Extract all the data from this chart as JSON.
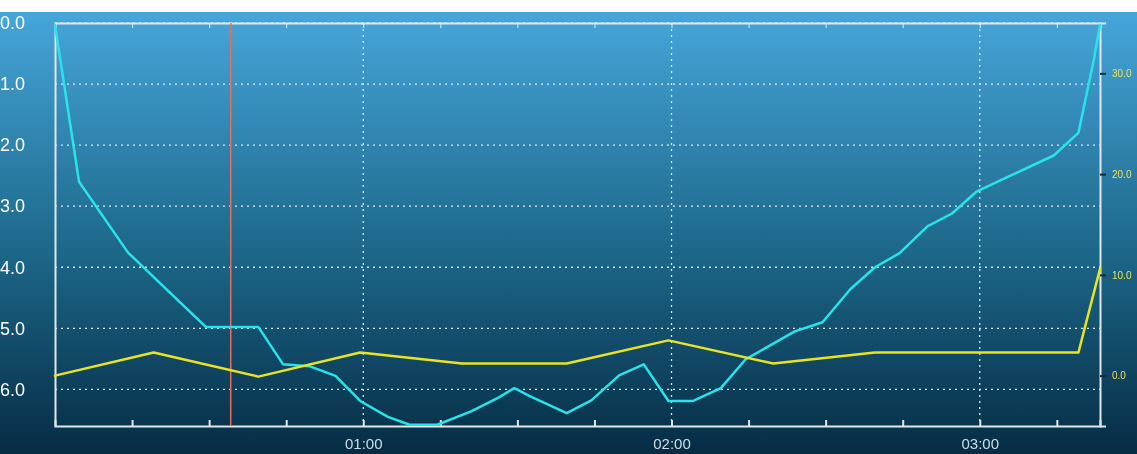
{
  "chart_data": {
    "type": "line",
    "xlim": [
      0,
      3.39
    ],
    "ylim": [
      6.6,
      0
    ],
    "y2lim": [
      -5,
      35
    ],
    "xticks": [
      {
        "value": 0.25,
        "label": null
      },
      {
        "value": 0.5,
        "label": null
      },
      {
        "value": 0.75,
        "label": null
      },
      {
        "value": 1,
        "label": "01:00"
      },
      {
        "value": 1.25,
        "label": null
      },
      {
        "value": 1.5,
        "label": null
      },
      {
        "value": 1.75,
        "label": null
      },
      {
        "value": 2,
        "label": "02:00"
      },
      {
        "value": 2.25,
        "label": null
      },
      {
        "value": 2.5,
        "label": null
      },
      {
        "value": 2.75,
        "label": null
      },
      {
        "value": 3,
        "label": "03:00"
      },
      {
        "value": 3.25,
        "label": null
      }
    ],
    "yticks": [
      {
        "value": 0,
        "label": "0.0"
      },
      {
        "value": 1,
        "label": "1.0"
      },
      {
        "value": 2,
        "label": "2.0"
      },
      {
        "value": 3,
        "label": "3.0"
      },
      {
        "value": 4,
        "label": "4.0"
      },
      {
        "value": 5,
        "label": "5.0"
      },
      {
        "value": 6,
        "label": "6.0"
      }
    ],
    "y2ticks": [
      {
        "value": 0,
        "label": "0.0"
      },
      {
        "value": 10,
        "label": "10.0"
      },
      {
        "value": 20,
        "label": "20.0"
      },
      {
        "value": 30,
        "label": "30.0"
      }
    ],
    "grid": true,
    "line_style": "solid",
    "ref_lines": [
      {
        "axis": "x",
        "value": 0.57,
        "label": null,
        "color": "#e07060"
      }
    ],
    "series": [
      {
        "color": "#28e4ea",
        "x": [
          0,
          0.078,
          0.237,
          0.49,
          0.66,
          0.74,
          0.825,
          0.91,
          0.99,
          1.08,
          1.15,
          1.24,
          1.35,
          1.44,
          1.49,
          1.54,
          1.66,
          1.74,
          1.83,
          1.91,
          1.99,
          2.07,
          2.16,
          2.24,
          2.32,
          2.4,
          2.49,
          2.58,
          2.66,
          2.74,
          2.83,
          2.91,
          2.99,
          3.07,
          3.24,
          3.32,
          3.37,
          3.39
        ],
        "values": [
          0.03,
          2.6,
          3.76,
          4.98,
          4.98,
          5.59,
          5.62,
          5.78,
          6.19,
          6.45,
          6.58,
          6.58,
          6.36,
          6.13,
          5.98,
          6.11,
          6.39,
          6.18,
          5.77,
          5.59,
          6.19,
          6.19,
          5.98,
          5.51,
          5.28,
          5.05,
          4.9,
          4.36,
          4.0,
          3.77,
          3.33,
          3.12,
          2.76,
          2.57,
          2.17,
          1.8,
          0.6,
          0.03
        ]
      },
      {
        "color": "#e8e424",
        "axis": "y2",
        "x": [
          0,
          0.32,
          0.66,
          0.99,
          1.32,
          1.66,
          1.99,
          2.33,
          2.66,
          3.32,
          3.39
        ],
        "values": [
          0,
          2.3,
          -0.1,
          2.3,
          1.2,
          1.2,
          3.5,
          1.2,
          2.3,
          2.3,
          10.6
        ]
      }
    ]
  }
}
